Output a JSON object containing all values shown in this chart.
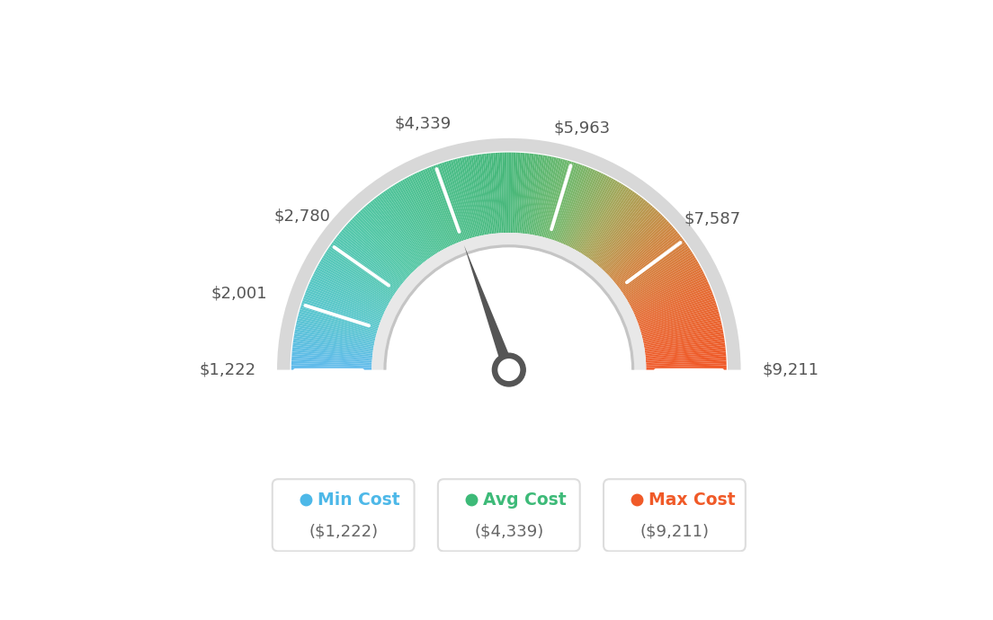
{
  "min_val": 1222,
  "max_val": 9211,
  "avg_val": 4339,
  "tick_labels": [
    "$1,222",
    "$2,001",
    "$2,780",
    "$4,339",
    "$5,963",
    "$7,587",
    "$9,211"
  ],
  "tick_values": [
    1222,
    2001,
    2780,
    4339,
    5963,
    7587,
    9211
  ],
  "legend_labels": [
    "Min Cost",
    "Avg Cost",
    "Max Cost"
  ],
  "legend_values": [
    "($1,222)",
    "($4,339)",
    "($9,211)"
  ],
  "legend_colors": [
    "#4db8e8",
    "#3dba78",
    "#f05a28"
  ],
  "bg_color": "#ffffff",
  "color_stops": [
    [
      0.0,
      [
        0.38,
        0.73,
        0.93
      ]
    ],
    [
      0.1,
      [
        0.35,
        0.78,
        0.8
      ]
    ],
    [
      0.25,
      [
        0.32,
        0.78,
        0.65
      ]
    ],
    [
      0.38,
      [
        0.3,
        0.75,
        0.55
      ]
    ],
    [
      0.5,
      [
        0.28,
        0.72,
        0.48
      ]
    ],
    [
      0.6,
      [
        0.45,
        0.72,
        0.42
      ]
    ],
    [
      0.68,
      [
        0.65,
        0.65,
        0.35
      ]
    ],
    [
      0.78,
      [
        0.82,
        0.52,
        0.25
      ]
    ],
    [
      0.88,
      [
        0.9,
        0.42,
        0.2
      ]
    ],
    [
      1.0,
      [
        0.94,
        0.35,
        0.16
      ]
    ]
  ]
}
